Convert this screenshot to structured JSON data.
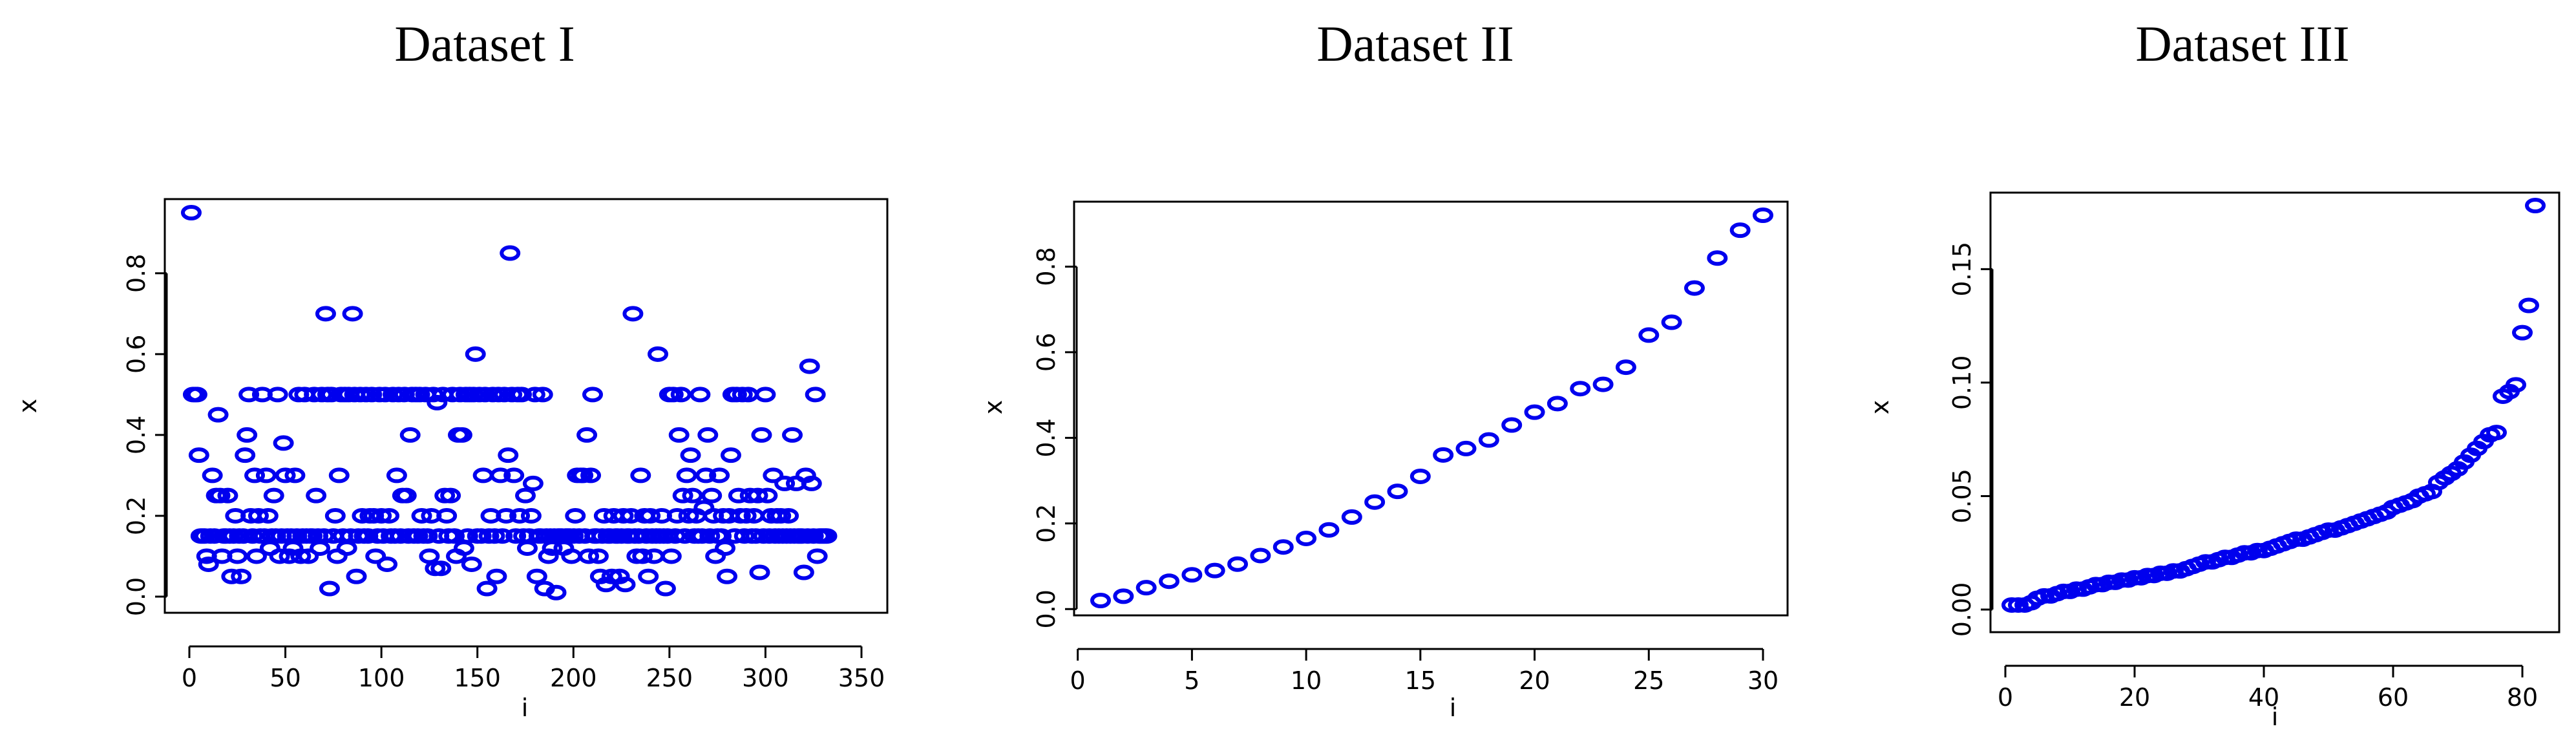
{
  "colors": {
    "marker": "#0000ee",
    "axis": "#000000",
    "background": "#ffffff"
  },
  "chart_data": [
    {
      "type": "scatter",
      "title": "Dataset I",
      "xlabel": "i",
      "ylabel": "x",
      "xlim": [
        0,
        350
      ],
      "ylim": [
        0,
        0.95
      ],
      "xticks": [
        0,
        50,
        100,
        150,
        200,
        250,
        300,
        350
      ],
      "yticks": [
        0.0,
        0.2,
        0.4,
        0.6,
        0.8
      ],
      "grid": false,
      "series": [
        {
          "values": [
            0.95,
            0.5,
            0.5,
            0.5,
            0.35,
            0.15,
            0.15,
            0.15,
            0.1,
            0.08,
            0.15,
            0.3,
            0.15,
            0.25,
            0.45,
            0.25,
            0.1,
            0.15,
            0.15,
            0.25,
            0.15,
            0.05,
            0.15,
            0.2,
            0.1,
            0.15,
            0.05,
            0.15,
            0.35,
            0.4,
            0.5,
            0.2,
            0.15,
            0.3,
            0.1,
            0.2,
            0.15,
            0.5,
            0.15,
            0.3,
            0.2,
            0.12,
            0.15,
            0.25,
            0.15,
            0.5,
            0.1,
            0.15,
            0.38,
            0.3,
            0.15,
            0.1,
            0.15,
            0.12,
            0.3,
            0.15,
            0.5,
            0.1,
            0.15,
            0.5,
            0.15,
            0.1,
            0.15,
            0.15,
            0.5,
            0.25,
            0.15,
            0.12,
            0.5,
            0.15,
            0.7,
            0.5,
            0.02,
            0.5,
            0.15,
            0.2,
            0.1,
            0.3,
            0.5,
            0.15,
            0.5,
            0.12,
            0.5,
            0.15,
            0.7,
            0.5,
            0.05,
            0.15,
            0.5,
            0.2,
            0.15,
            0.5,
            0.15,
            0.2,
            0.5,
            0.2,
            0.1,
            0.15,
            0.5,
            0.2,
            0.15,
            0.5,
            0.08,
            0.2,
            0.15,
            0.5,
            0.15,
            0.3,
            0.5,
            0.15,
            0.25,
            0.5,
            0.25,
            0.15,
            0.4,
            0.5,
            0.15,
            0.5,
            0.15,
            0.5,
            0.2,
            0.15,
            0.5,
            0.15,
            0.1,
            0.2,
            0.5,
            0.07,
            0.48,
            0.15,
            0.07,
            0.5,
            0.25,
            0.2,
            0.15,
            0.25,
            0.5,
            0.15,
            0.1,
            0.4,
            0.5,
            0.4,
            0.12,
            0.5,
            0.15,
            0.5,
            0.08,
            0.5,
            0.6,
            0.15,
            0.5,
            0.15,
            0.3,
            0.5,
            0.02,
            0.15,
            0.2,
            0.5,
            0.15,
            0.05,
            0.5,
            0.3,
            0.15,
            0.5,
            0.2,
            0.35,
            0.85,
            0.5,
            0.3,
            0.15,
            0.5,
            0.2,
            0.5,
            0.15,
            0.25,
            0.12,
            0.15,
            0.2,
            0.28,
            0.5,
            0.05,
            0.15,
            0.15,
            0.5,
            0.02,
            0.15,
            0.1,
            0.15,
            0.12,
            0.15,
            0.01,
            0.15,
            0.15,
            0.15,
            0.12,
            0.15,
            0.15,
            0.15,
            0.1,
            0.15,
            0.2,
            0.3,
            0.15,
            0.3,
            0.3,
            0.15,
            0.4,
            0.1,
            0.3,
            0.5,
            0.15,
            0.15,
            0.1,
            0.05,
            0.15,
            0.2,
            0.03,
            0.15,
            0.15,
            0.05,
            0.2,
            0.15,
            0.15,
            0.05,
            0.15,
            0.2,
            0.03,
            0.15,
            0.15,
            0.2,
            0.7,
            0.15,
            0.1,
            0.15,
            0.3,
            0.1,
            0.2,
            0.15,
            0.05,
            0.2,
            0.15,
            0.1,
            0.15,
            0.6,
            0.15,
            0.2,
            0.15,
            0.02,
            0.15,
            0.5,
            0.1,
            0.5,
            0.15,
            0.2,
            0.4,
            0.5,
            0.25,
            0.15,
            0.3,
            0.2,
            0.35,
            0.25,
            0.15,
            0.2,
            0.15,
            0.5,
            0.15,
            0.22,
            0.3,
            0.4,
            0.15,
            0.25,
            0.2,
            0.1,
            0.15,
            0.3,
            0.15,
            0.2,
            0.12,
            0.05,
            0.2,
            0.35,
            0.5,
            0.15,
            0.5,
            0.25,
            0.2,
            0.5,
            0.15,
            0.2,
            0.5,
            0.25,
            0.15,
            0.2,
            0.15,
            0.25,
            0.06,
            0.4,
            0.15,
            0.5,
            0.25,
            0.15,
            0.2,
            0.3,
            0.15,
            0.2,
            0.15,
            0.2,
            0.15,
            0.28,
            0.15,
            0.2,
            0.15,
            0.4,
            0.15,
            0.28,
            0.15,
            0.15,
            0.15,
            0.06,
            0.3,
            0.15,
            0.57,
            0.28,
            0.15,
            0.5,
            0.1,
            0.15,
            0.15,
            0.15,
            0.15,
            0.15
          ]
        }
      ]
    },
    {
      "type": "scatter",
      "title": "Dataset II",
      "xlabel": "i",
      "ylabel": "x",
      "xlim": [
        1,
        30
      ],
      "ylim": [
        0.02,
        0.92
      ],
      "xticks": [
        0,
        5,
        10,
        15,
        20,
        25,
        30
      ],
      "yticks": [
        0.0,
        0.2,
        0.4,
        0.6,
        0.8
      ],
      "grid": false,
      "series": [
        {
          "values": [
            0.02,
            0.03,
            0.05,
            0.065,
            0.08,
            0.09,
            0.105,
            0.125,
            0.145,
            0.165,
            0.185,
            0.215,
            0.25,
            0.275,
            0.31,
            0.36,
            0.375,
            0.395,
            0.43,
            0.46,
            0.48,
            0.515,
            0.525,
            0.565,
            0.64,
            0.67,
            0.75,
            0.82,
            0.885,
            0.92
          ]
        }
      ]
    },
    {
      "type": "scatter",
      "title": "Dataset III",
      "xlabel": "i",
      "ylabel": "x",
      "xlim": [
        1,
        82
      ],
      "ylim": [
        0,
        0.178
      ],
      "xticks": [
        0,
        20,
        40,
        60,
        80
      ],
      "yticks": [
        0.0,
        0.05,
        0.1,
        0.15
      ],
      "ytick_labels": [
        "0.00",
        "0.05",
        "0.10",
        "0.15"
      ],
      "grid": false,
      "series": [
        {
          "values": [
            0.002,
            0.002,
            0.002,
            0.003,
            0.005,
            0.006,
            0.006,
            0.007,
            0.008,
            0.008,
            0.009,
            0.009,
            0.01,
            0.011,
            0.011,
            0.012,
            0.012,
            0.013,
            0.013,
            0.014,
            0.014,
            0.015,
            0.015,
            0.016,
            0.016,
            0.017,
            0.017,
            0.018,
            0.019,
            0.02,
            0.021,
            0.021,
            0.022,
            0.023,
            0.023,
            0.024,
            0.025,
            0.025,
            0.026,
            0.026,
            0.027,
            0.028,
            0.029,
            0.03,
            0.031,
            0.031,
            0.032,
            0.033,
            0.034,
            0.035,
            0.035,
            0.036,
            0.037,
            0.038,
            0.039,
            0.04,
            0.041,
            0.042,
            0.043,
            0.045,
            0.046,
            0.047,
            0.048,
            0.05,
            0.051,
            0.052,
            0.056,
            0.058,
            0.06,
            0.062,
            0.065,
            0.068,
            0.071,
            0.074,
            0.077,
            0.078,
            0.094,
            0.096,
            0.099,
            0.122,
            0.134,
            0.178
          ]
        }
      ]
    }
  ]
}
